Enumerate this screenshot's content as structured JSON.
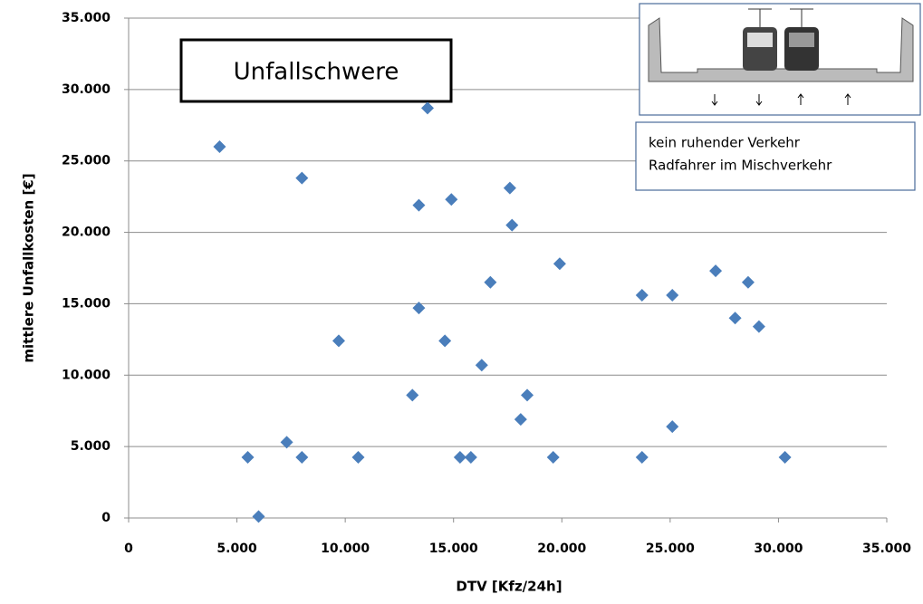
{
  "chart_data": {
    "type": "scatter",
    "title": "Unfallschwere",
    "annotations": [
      "kein ruhender Verkehr",
      "Radfahrer im Mischverkehr"
    ],
    "xlabel": "DTV [Kfz/24h]",
    "ylabel": "mittlere Unfallkosten [€]",
    "color": "#4a7ebb",
    "grid": true,
    "xlim": [
      0,
      35000
    ],
    "ylim": [
      0,
      35000
    ],
    "xticks": [
      0,
      {
        "value": 5000,
        "label": "5.000"
      },
      {
        "value": 10000,
        "label": "10.000"
      },
      {
        "value": 15000,
        "label": "15.000"
      },
      {
        "value": 20000,
        "label": "20.000"
      },
      {
        "value": 25000,
        "label": "25.000"
      },
      {
        "value": 30000,
        "label": "30.000"
      },
      {
        "value": 35000,
        "label": "35.000"
      }
    ],
    "yticks": [
      0,
      {
        "value": 5000,
        "label": "5.000"
      },
      {
        "value": 10000,
        "label": "10.000"
      },
      {
        "value": 15000,
        "label": "15.000"
      },
      {
        "value": 20000,
        "label": "20.000"
      },
      {
        "value": 25000,
        "label": "25.000"
      },
      {
        "value": 30000,
        "label": "30.000"
      },
      {
        "value": 35000,
        "label": "35.000"
      }
    ],
    "x": [
      4200,
      5500,
      6000,
      7300,
      8000,
      8000,
      9700,
      10600,
      13100,
      13400,
      13400,
      13800,
      14600,
      14900,
      15300,
      15800,
      16300,
      16700,
      17600,
      17700,
      18100,
      18400,
      19600,
      19900,
      23700,
      23700,
      25100,
      25100,
      27100,
      28000,
      28600,
      29100,
      30300
    ],
    "values": [
      26000,
      4250,
      100,
      5300,
      23800,
      4250,
      12400,
      4250,
      8600,
      14700,
      21900,
      28700,
      12400,
      22300,
      4250,
      4250,
      10700,
      16500,
      23100,
      20500,
      6900,
      8600,
      4250,
      17800,
      15600,
      4250,
      15600,
      6400,
      17300,
      14000,
      16500,
      13400,
      4250
    ]
  }
}
